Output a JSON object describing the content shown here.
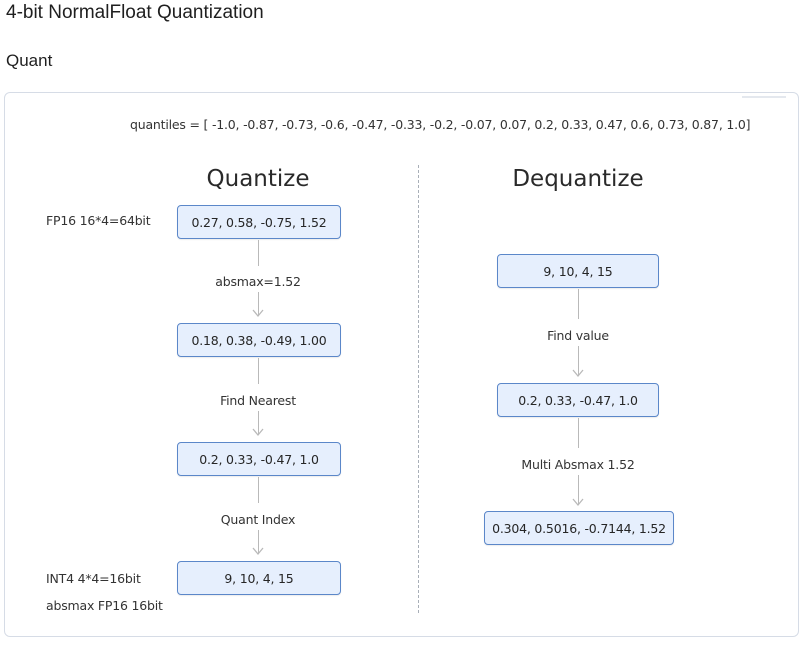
{
  "header": {
    "title": "4-bit NormalFloat Quantization",
    "section": "Quant"
  },
  "diagram": {
    "quantiles_text": "quantiles = [ -1.0, -0.87, -0.73, -0.6, -0.47, -0.33, -0.2, -0.07, 0.07, 0.2, 0.33, 0.47, 0.6, 0.73, 0.87, 1.0]",
    "quantize": {
      "heading": "Quantize",
      "input_note": "FP16 16*4=64bit",
      "nodes": [
        "0.27, 0.58, -0.75, 1.52",
        "0.18, 0.38, -0.49, 1.00",
        "0.2, 0.33, -0.47, 1.0",
        "9, 10, 4, 15"
      ],
      "steps": [
        "absmax=1.52",
        "Find Nearest",
        "Quant Index"
      ],
      "output_note": "INT4 4*4=16bit",
      "extra_note": "absmax FP16 16bit"
    },
    "dequantize": {
      "heading": "Dequantize",
      "nodes": [
        "9, 10, 4, 15",
        "0.2, 0.33, -0.47, 1.0",
        "0.304, 0.5016, -0.7144, 1.52"
      ],
      "steps": [
        "Find value",
        "Multi Absmax 1.52"
      ]
    },
    "colors": {
      "node_fill": "#e6effd",
      "node_border": "#5b87c9",
      "arrow": "#b9b9b9",
      "divider": "#a9afb8"
    }
  }
}
